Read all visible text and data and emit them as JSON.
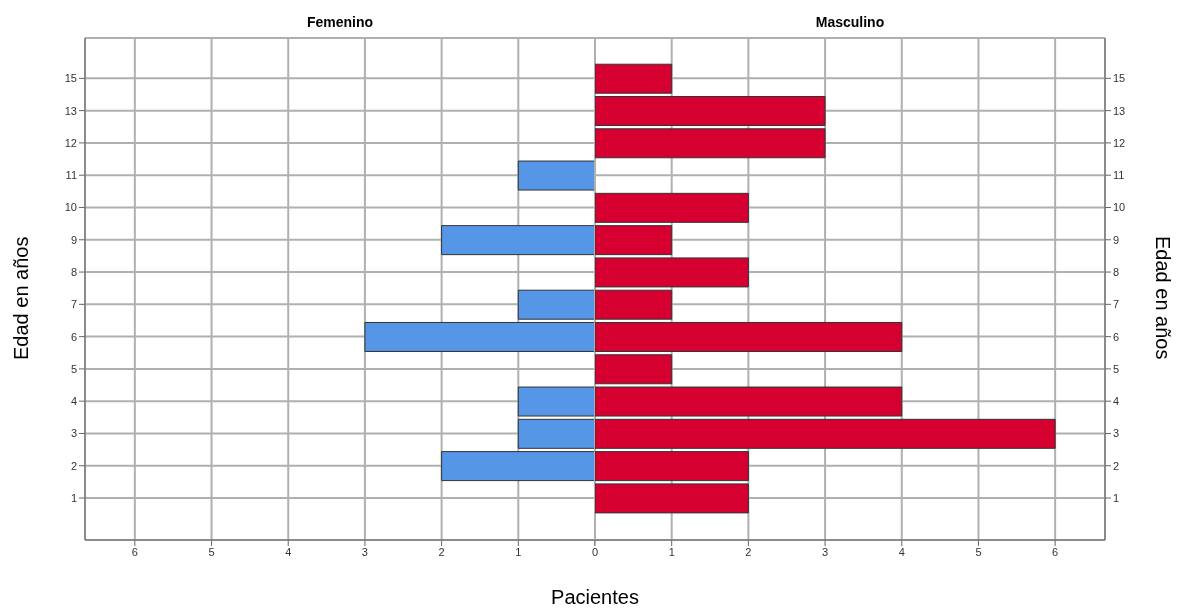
{
  "chart_data": [
    {
      "type": "bar",
      "orientation": "horizontal",
      "title": "Femenino",
      "ylabel": "Edad en años",
      "categories": [
        "15",
        "13",
        "12",
        "11",
        "10",
        "9",
        "8",
        "7",
        "6",
        "5",
        "4",
        "3",
        "2",
        "1"
      ],
      "series": [
        {
          "color": "#5596e6",
          "values": [
            null,
            null,
            null,
            1,
            null,
            2,
            null,
            1,
            3,
            null,
            1,
            1,
            2,
            null
          ]
        }
      ],
      "xlim": [
        6.65,
        0
      ],
      "xticks": [
        6,
        5,
        4,
        3,
        2,
        1,
        {
          "value": 0,
          "label": null
        }
      ],
      "grid": true
    },
    {
      "type": "bar",
      "orientation": "horizontal",
      "title": "Masculino",
      "ylabel": "Edad en años",
      "xlabel": "Pacientes",
      "categories": [
        "15",
        "13",
        "12",
        "11",
        "10",
        "9",
        "8",
        "7",
        "6",
        "5",
        "4",
        "3",
        "2",
        "1"
      ],
      "series": [
        {
          "color": "#d5002f",
          "values": [
            1,
            3,
            3,
            null,
            2,
            1,
            2,
            1,
            4,
            1,
            4,
            6,
            2,
            2
          ]
        }
      ],
      "xlim": [
        0,
        6.65
      ],
      "xticks": [
        0,
        1,
        2,
        3,
        4,
        5,
        6
      ],
      "grid": true
    }
  ]
}
